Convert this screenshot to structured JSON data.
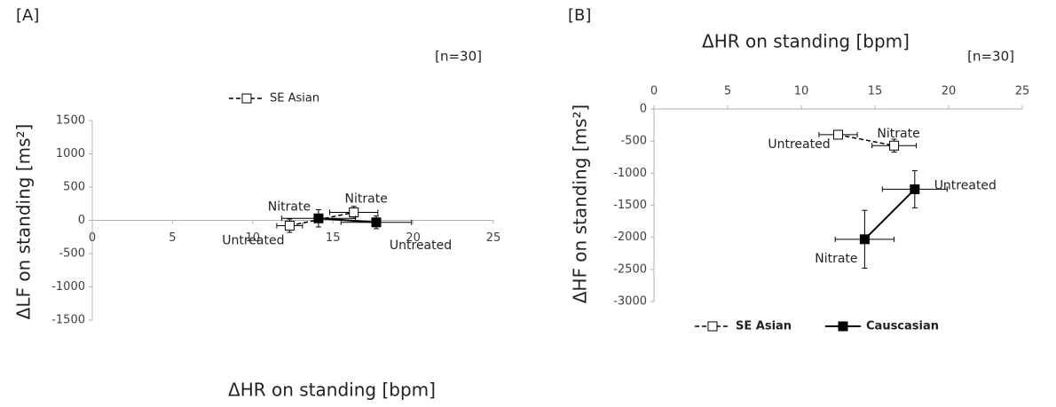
{
  "chart_data": [
    {
      "type": "scatter",
      "panel_label": "[A]",
      "note": "[n=30]",
      "x_label": "ΔHR on standing [bpm]",
      "y_label": "ΔLF on standing [ms²]",
      "xlim": [
        0,
        25
      ],
      "xticks": [
        0,
        5,
        10,
        15,
        20,
        25
      ],
      "ylim": [
        -1500,
        1500
      ],
      "yticks": [
        -1500,
        -1000,
        -500,
        0,
        500,
        1000,
        1500
      ],
      "connect": true,
      "series": [
        {
          "name": "SE Asian",
          "color": "#000000",
          "dash": true,
          "marker_fill": "#ffffff",
          "x": [
            12.3,
            16.3
          ],
          "y": [
            -80,
            120
          ],
          "xerr": [
            0.8,
            1.5
          ],
          "yerr": [
            100,
            90
          ],
          "point_labels": [
            "Untreated",
            "Nitrate"
          ]
        },
        {
          "color": "#000000",
          "dash": false,
          "marker_fill": "#000000",
          "x": [
            14.1,
            17.7
          ],
          "y": [
            30,
            -30
          ],
          "xerr": [
            2.3,
            2.2
          ],
          "yerr": [
            130,
            95
          ],
          "point_labels": [
            "Nitrate",
            "Untreated"
          ]
        }
      ]
    },
    {
      "type": "scatter",
      "panel_label": "[B]",
      "note": "[n=30]",
      "x_label": "ΔHR on standing [bpm]",
      "y_label": "ΔHF on standing [ms²]",
      "xlim": [
        0,
        25
      ],
      "xticks": [
        0,
        5,
        10,
        15,
        20,
        25
      ],
      "ylim": [
        -3000,
        0
      ],
      "yticks": [
        -3000,
        -2500,
        -2000,
        -1500,
        -1000,
        -500,
        0
      ],
      "connect": true,
      "series": [
        {
          "name": "SE Asian",
          "color": "#000000",
          "dash": true,
          "marker_fill": "#ffffff",
          "x": [
            12.5,
            16.3
          ],
          "y": [
            -400,
            -570
          ],
          "xerr": [
            1.3,
            1.5
          ],
          "yerr": [
            50,
            100
          ],
          "point_labels": [
            "Untreated",
            "Nitrate"
          ]
        },
        {
          "name": "Causcasian",
          "color": "#000000",
          "dash": false,
          "marker_fill": "#000000",
          "x": [
            17.7,
            14.3
          ],
          "y": [
            -1250,
            -2030
          ],
          "xerr": [
            2.2,
            2.0
          ],
          "yerr": [
            290,
            450
          ],
          "point_labels": [
            "Untreated",
            "Nitrate"
          ]
        }
      ]
    }
  ]
}
